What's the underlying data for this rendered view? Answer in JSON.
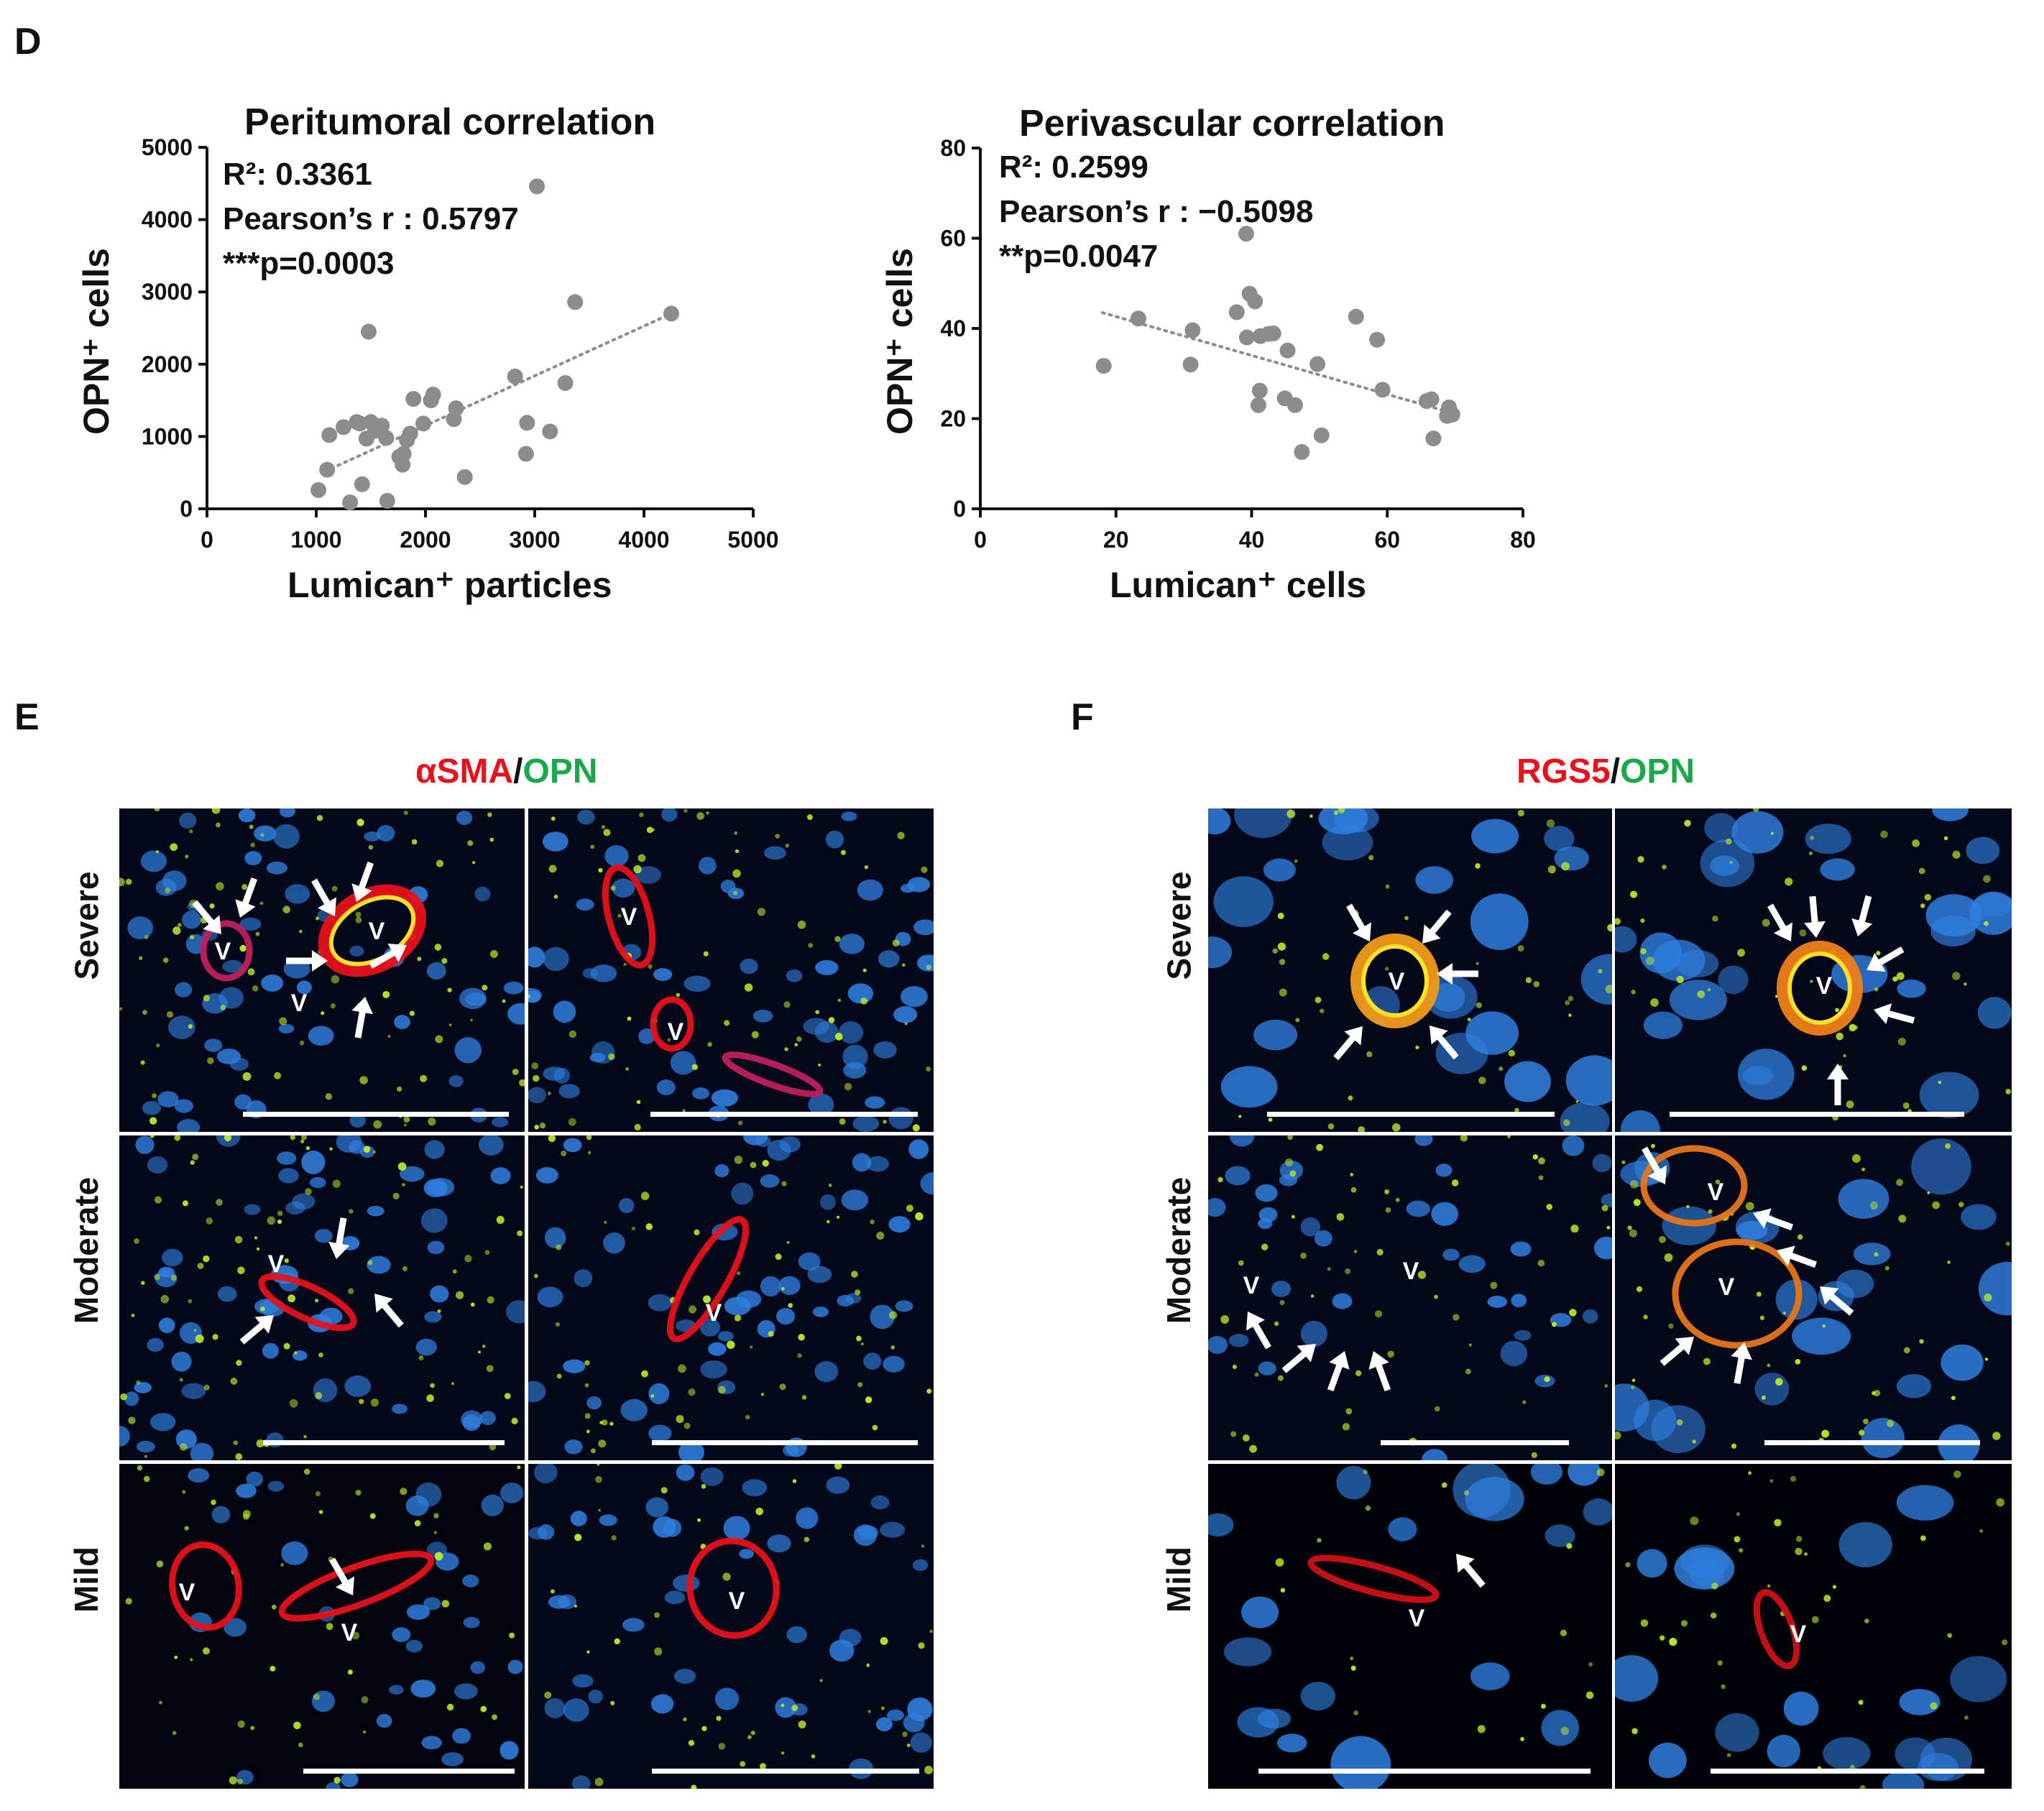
{
  "panel_d": {
    "letter": "D"
  },
  "chart_data": [
    {
      "type": "scatter",
      "title": "Peritumoral correlation",
      "annotations": [
        "R²: 0.3361",
        "Pearson’s r : 0.5797",
        "***p=0.0003"
      ],
      "xlabel": "Lumican⁺ particles",
      "ylabel": "OPN⁺ cells",
      "xlim": [
        0,
        5000
      ],
      "ylim": [
        0,
        5000
      ],
      "xticks": [
        0,
        1000,
        2000,
        3000,
        4000,
        5000
      ],
      "yticks": [
        0,
        1000,
        2000,
        3000,
        4000,
        5000
      ],
      "trendline": [
        [
          1200,
          600
        ],
        [
          4250,
          2700
        ]
      ],
      "points": [
        [
          1020,
          260
        ],
        [
          1100,
          540
        ],
        [
          1120,
          1020
        ],
        [
          1250,
          1130
        ],
        [
          1310,
          90
        ],
        [
          1370,
          1200
        ],
        [
          1400,
          1180
        ],
        [
          1420,
          340
        ],
        [
          1460,
          970
        ],
        [
          1480,
          2450
        ],
        [
          1500,
          1200
        ],
        [
          1540,
          1080
        ],
        [
          1600,
          1150
        ],
        [
          1640,
          980
        ],
        [
          1650,
          110
        ],
        [
          1760,
          720
        ],
        [
          1790,
          610
        ],
        [
          1800,
          760
        ],
        [
          1830,
          950
        ],
        [
          1860,
          1040
        ],
        [
          1890,
          1520
        ],
        [
          1980,
          1180
        ],
        [
          2050,
          1500
        ],
        [
          2070,
          1580
        ],
        [
          2260,
          1240
        ],
        [
          2280,
          1390
        ],
        [
          2360,
          440
        ],
        [
          2820,
          1830
        ],
        [
          2920,
          760
        ],
        [
          2930,
          1190
        ],
        [
          3020,
          4460
        ],
        [
          3140,
          1070
        ],
        [
          3280,
          1740
        ],
        [
          3370,
          2860
        ],
        [
          4250,
          2700
        ]
      ],
      "grid": false
    },
    {
      "type": "scatter",
      "title": "Perivascular correlation",
      "annotations": [
        "R²: 0.2599",
        "Pearson’s r : −0.5098",
        "**p=0.0047"
      ],
      "xlabel": "Lumican⁺ cells",
      "ylabel": "OPN⁺ cells",
      "xlim": [
        0,
        80
      ],
      "ylim": [
        0,
        80
      ],
      "xticks": [
        0,
        20,
        40,
        60,
        80
      ],
      "yticks": [
        0,
        20,
        40,
        60,
        80
      ],
      "trendline": [
        [
          18,
          43.5
        ],
        [
          69,
          21.5
        ]
      ],
      "points": [
        [
          18.2,
          31.7
        ],
        [
          23.3,
          42.2
        ],
        [
          31.0,
          32.0
        ],
        [
          31.3,
          39.6
        ],
        [
          37.8,
          43.6
        ],
        [
          39.2,
          61.0
        ],
        [
          39.3,
          38.0
        ],
        [
          39.7,
          47.7
        ],
        [
          40.5,
          46.0
        ],
        [
          41.0,
          23.0
        ],
        [
          41.2,
          26.2
        ],
        [
          41.3,
          38.3
        ],
        [
          42.5,
          38.8
        ],
        [
          43.2,
          38.9
        ],
        [
          44.9,
          24.5
        ],
        [
          45.3,
          35.1
        ],
        [
          46.4,
          23.0
        ],
        [
          47.4,
          12.6
        ],
        [
          49.7,
          32.1
        ],
        [
          50.3,
          16.3
        ],
        [
          55.4,
          42.6
        ],
        [
          58.5,
          37.5
        ],
        [
          59.3,
          26.4
        ],
        [
          65.8,
          23.9
        ],
        [
          66.5,
          24.3
        ],
        [
          66.8,
          15.6
        ],
        [
          68.8,
          20.6
        ],
        [
          69.1,
          22.5
        ],
        [
          69.6,
          20.9
        ]
      ],
      "grid": false
    }
  ],
  "panel_e": {
    "letter": "E",
    "title_red": "αSMA",
    "title_sep": "/",
    "title_green": "OPN",
    "rows": [
      "Severe",
      "Moderate",
      "Mild"
    ]
  },
  "panel_f": {
    "letter": "F",
    "title_red": "RGS5",
    "title_sep": "/",
    "title_green": "OPN",
    "rows": [
      "Severe",
      "Moderate",
      "Mild"
    ]
  },
  "vessel_label": "V",
  "colors": {
    "red_stain": "#e8111b",
    "green_stain": "#1aa84a",
    "point": "#8c8c8c",
    "trendline": "#8c8c8c",
    "nuclei": "#2f7fe0",
    "opn": "#b8e82a"
  }
}
